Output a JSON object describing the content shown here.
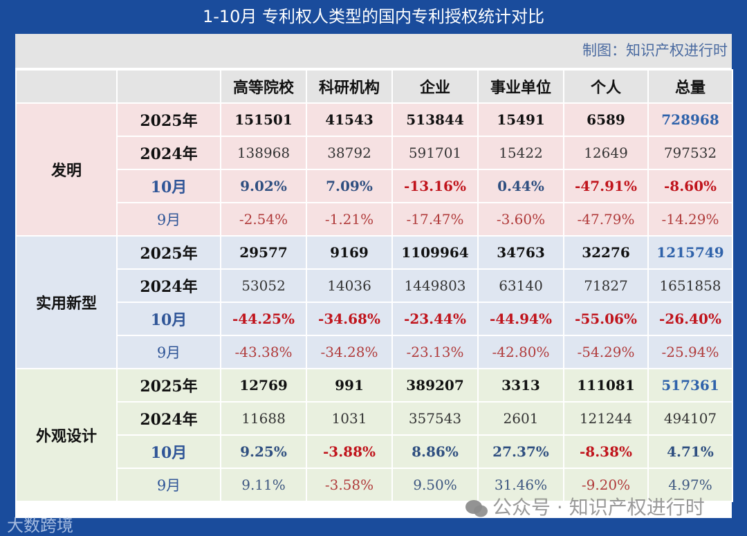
{
  "title": "1-10月  专利权人类型的国内专利授权统计对比",
  "caption": "制图：知识产权进行时",
  "columns": [
    "高等院校",
    "科研机构",
    "企业",
    "事业单位",
    "个人",
    "总量"
  ],
  "groups": [
    {
      "name": "发明",
      "rows": [
        {
          "label": "2025年",
          "kind": "y2025",
          "values": [
            "151501",
            "41543",
            "513844",
            "15491",
            "6589",
            "728968"
          ]
        },
        {
          "label": "2024年",
          "kind": "y2024",
          "values": [
            "138968",
            "38792",
            "591701",
            "15422",
            "12649",
            "797532"
          ]
        },
        {
          "label": "10月",
          "kind": "m10",
          "values": [
            "9.02%",
            "7.09%",
            "-13.16%",
            "0.44%",
            "-47.91%",
            "-8.60%"
          ]
        },
        {
          "label": "9月",
          "kind": "m9",
          "values": [
            "-2.54%",
            "-1.21%",
            "-17.47%",
            "-3.60%",
            "-47.79%",
            "-14.29%"
          ]
        }
      ]
    },
    {
      "name": "实用新型",
      "rows": [
        {
          "label": "2025年",
          "kind": "y2025",
          "values": [
            "29577",
            "9169",
            "1109964",
            "34763",
            "32276",
            "1215749"
          ]
        },
        {
          "label": "2024年",
          "kind": "y2024",
          "values": [
            "53052",
            "14036",
            "1449803",
            "63140",
            "71827",
            "1651858"
          ]
        },
        {
          "label": "10月",
          "kind": "m10",
          "values": [
            "-44.25%",
            "-34.68%",
            "-23.44%",
            "-44.94%",
            "-55.06%",
            "-26.40%"
          ]
        },
        {
          "label": "9月",
          "kind": "m9",
          "values": [
            "-43.38%",
            "-34.28%",
            "-23.13%",
            "-42.80%",
            "-54.29%",
            "-25.94%"
          ]
        }
      ]
    },
    {
      "name": "外观设计",
      "rows": [
        {
          "label": "2025年",
          "kind": "y2025",
          "values": [
            "12769",
            "991",
            "389207",
            "3313",
            "111081",
            "517361"
          ]
        },
        {
          "label": "2024年",
          "kind": "y2024",
          "values": [
            "11688",
            "1031",
            "357543",
            "2601",
            "121244",
            "494107"
          ]
        },
        {
          "label": "10月",
          "kind": "m10",
          "values": [
            "9.25%",
            "-3.88%",
            "8.86%",
            "27.37%",
            "-8.38%",
            "4.71%"
          ]
        },
        {
          "label": "9月",
          "kind": "m9",
          "values": [
            "9.11%",
            "-3.58%",
            "9.50%",
            "31.46%",
            "-9.20%",
            "4.97%"
          ]
        }
      ]
    }
  ],
  "colors": {
    "background": "#1a4c9c",
    "positive": "#2f4f80",
    "negative": "#c0141c",
    "total_2025": "#2f62aa"
  },
  "watermark": "公众号 · 知识产权进行时",
  "logo": "大数跨境"
}
